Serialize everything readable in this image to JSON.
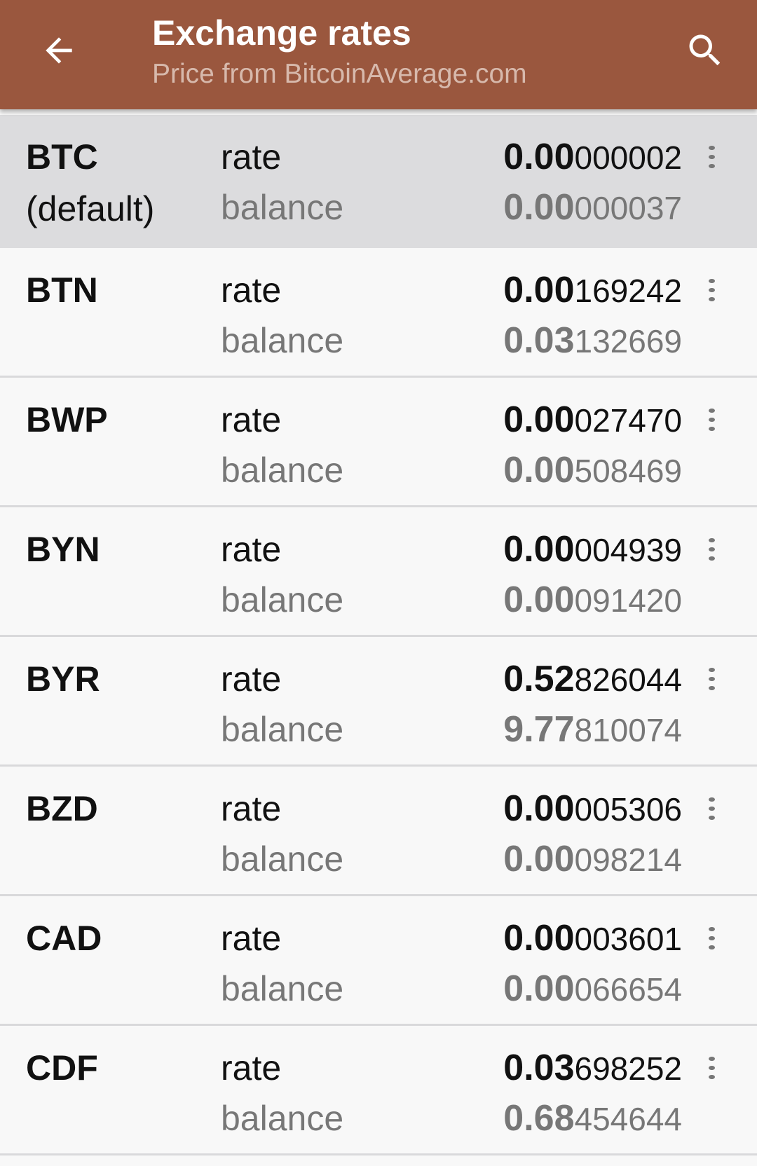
{
  "header": {
    "title": "Exchange rates",
    "subtitle": "Price from BitcoinAverage.com",
    "back_icon": "arrow-left-icon",
    "search_icon": "search-icon",
    "background": "#9a573e"
  },
  "labels": {
    "rate": "rate",
    "balance": "balance"
  },
  "rows": [
    {
      "code": "BTC",
      "tag": "(default)",
      "selected": true,
      "rate_lead": "0.00",
      "rate_tail": "000002",
      "balance_lead": "0.00",
      "balance_tail": "000037"
    },
    {
      "code": "BTN",
      "tag": "",
      "rate_lead": "0.00",
      "rate_tail": "169242",
      "balance_lead": "0.03",
      "balance_tail": "132669"
    },
    {
      "code": "BWP",
      "tag": "",
      "rate_lead": "0.00",
      "rate_tail": "027470",
      "balance_lead": "0.00",
      "balance_tail": "508469"
    },
    {
      "code": "BYN",
      "tag": "",
      "rate_lead": "0.00",
      "rate_tail": "004939",
      "balance_lead": "0.00",
      "balance_tail": "091420"
    },
    {
      "code": "BYR",
      "tag": "",
      "rate_lead": "0.52",
      "rate_tail": "826044",
      "balance_lead": "9.77",
      "balance_tail": "810074"
    },
    {
      "code": "BZD",
      "tag": "",
      "rate_lead": "0.00",
      "rate_tail": "005306",
      "balance_lead": "0.00",
      "balance_tail": "098214"
    },
    {
      "code": "CAD",
      "tag": "",
      "rate_lead": "0.00",
      "rate_tail": "003601",
      "balance_lead": "0.00",
      "balance_tail": "066654"
    },
    {
      "code": "CDF",
      "tag": "",
      "rate_lead": "0.03",
      "rate_tail": "698252",
      "balance_lead": "0.68",
      "balance_tail": "454644"
    }
  ]
}
